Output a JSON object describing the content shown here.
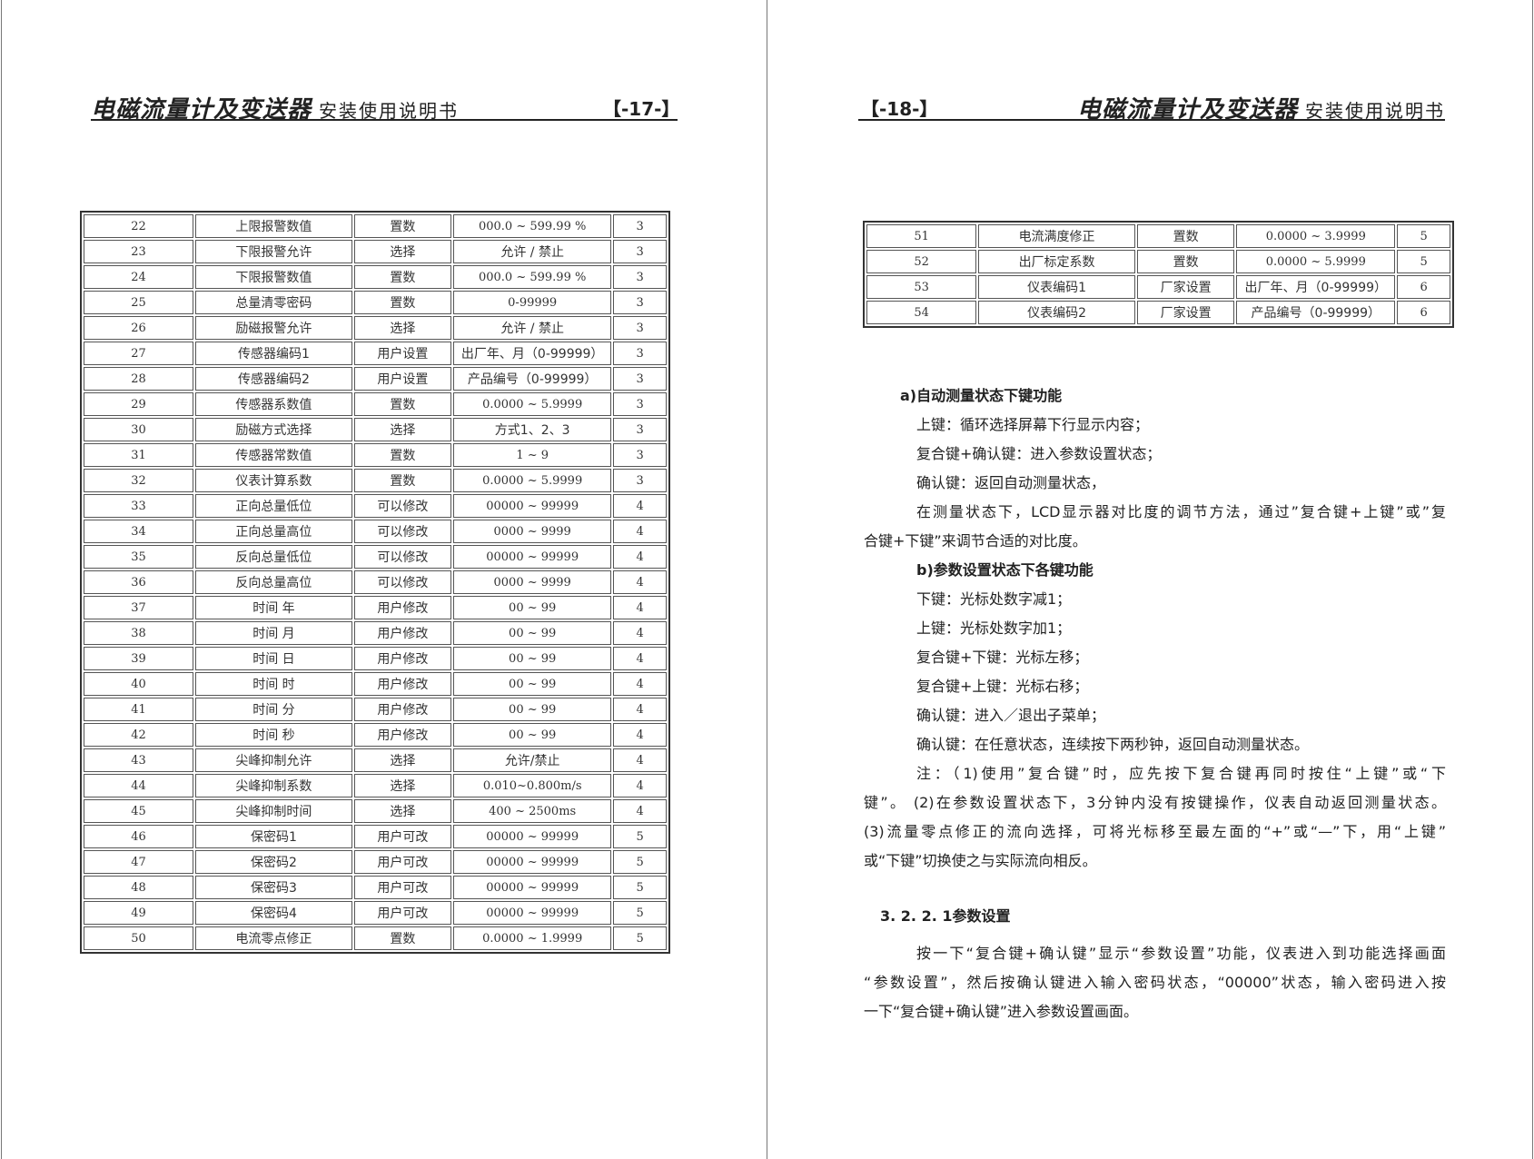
{
  "left_page": {
    "header_title": "电磁流量计及变送器",
    "header_subtitle": "安装使用说明书",
    "page_number": "【-17-】",
    "rows": [
      [
        "22",
        "上限报警数值",
        "置数",
        "000.0 ~ 599.99 %",
        "3"
      ],
      [
        "23",
        "下限报警允许",
        "选择",
        "允许 / 禁止",
        "3"
      ],
      [
        "24",
        "下限报警数值",
        "置数",
        "000.0 ~ 599.99 %",
        "3"
      ],
      [
        "25",
        "总量清零密码",
        "置数",
        "0-99999",
        "3"
      ],
      [
        "26",
        "励磁报警允许",
        "选择",
        "允许 / 禁止",
        "3"
      ],
      [
        "27",
        "传感器编码1",
        "用户设置",
        "出厂年、月（0-99999）",
        "3"
      ],
      [
        "28",
        "传感器编码2",
        "用户设置",
        "产品编号（0-99999）",
        "3"
      ],
      [
        "29",
        "传感器系数值",
        "置数",
        "0.0000 ~ 5.9999",
        "3"
      ],
      [
        "30",
        "励磁方式选择",
        "选择",
        "方式1、2、3",
        "3"
      ],
      [
        "31",
        "传感器常数值",
        "置数",
        "1 ~ 9",
        "3"
      ],
      [
        "32",
        "仪表计算系数",
        "置数",
        "0.0000 ~ 5.9999",
        "3"
      ],
      [
        "33",
        "正向总量低位",
        "可以修改",
        "00000 ~ 99999",
        "4"
      ],
      [
        "34",
        "正向总量高位",
        "可以修改",
        "0000 ~ 9999",
        "4"
      ],
      [
        "35",
        "反向总量低位",
        "可以修改",
        "00000 ~ 99999",
        "4"
      ],
      [
        "36",
        "反向总量高位",
        "可以修改",
        "0000 ~ 9999",
        "4"
      ],
      [
        "37",
        "时间 年",
        "用户修改",
        "00 ~ 99",
        "4"
      ],
      [
        "38",
        "时间 月",
        "用户修改",
        "00 ~ 99",
        "4"
      ],
      [
        "39",
        "时间 日",
        "用户修改",
        "00 ~ 99",
        "4"
      ],
      [
        "40",
        "时间 时",
        "用户修改",
        "00 ~ 99",
        "4"
      ],
      [
        "41",
        "时间 分",
        "用户修改",
        "00 ~ 99",
        "4"
      ],
      [
        "42",
        "时间 秒",
        "用户修改",
        "00 ~ 99",
        "4"
      ],
      [
        "43",
        "尖峰抑制允许",
        "选择",
        "允许/禁止",
        "4"
      ],
      [
        "44",
        "尖峰抑制系数",
        "选择",
        "0.010~0.800m/s",
        "4"
      ],
      [
        "45",
        "尖峰抑制时间",
        "选择",
        "400 ~ 2500ms",
        "4"
      ],
      [
        "46",
        "保密码1",
        "用户可改",
        "00000 ~ 99999",
        "5"
      ],
      [
        "47",
        "保密码2",
        "用户可改",
        "00000 ~ 99999",
        "5"
      ],
      [
        "48",
        "保密码3",
        "用户可改",
        "00000 ~ 99999",
        "5"
      ],
      [
        "49",
        "保密码4",
        "用户可改",
        "00000 ~ 99999",
        "5"
      ],
      [
        "50",
        "电流零点修正",
        "置数",
        "0.0000 ~ 1.9999",
        "5"
      ]
    ]
  },
  "right_page": {
    "header_title": "电磁流量计及变送器",
    "header_subtitle": "安装使用说明书",
    "page_number": "【-18-】",
    "rows": [
      [
        "51",
        "电流满度修正",
        "置数",
        "0.0000 ~ 3.9999",
        "5"
      ],
      [
        "52",
        "出厂标定系数",
        "置数",
        "0.0000 ~ 5.9999",
        "5"
      ],
      [
        "53",
        "仪表编码1",
        "厂家设置",
        "出厂年、月（0-99999）",
        "6"
      ],
      [
        "54",
        "仪表编码2",
        "厂家设置",
        "产品编号（0-99999）",
        "6"
      ]
    ],
    "lines": [
      {
        "text": "a)自动测量状态下键功能",
        "style": "heading-a"
      },
      {
        "text": "上键：循环选择屏幕下行显示内容；",
        "style": "indent"
      },
      {
        "text": "复合键+确认键：进入参数设置状态；",
        "style": "indent"
      },
      {
        "text": "确认键：返回自动测量状态，",
        "style": "indent"
      },
      {
        "text": "在测量状态下，LCD显示器对比度的调节方法，通过”复合键+上键”或”复",
        "style": "indent-full"
      },
      {
        "text": "合键+下键”来调节合适的对比度。",
        "style": "flush"
      },
      {
        "text": "b)参数设置状态下各键功能",
        "style": "heading-b"
      },
      {
        "text": "下键：光标处数字减1；",
        "style": "indent"
      },
      {
        "text": "上键：光标处数字加1；",
        "style": "indent"
      },
      {
        "text": "复合键+下键：光标左移；",
        "style": "indent"
      },
      {
        "text": "复合键+上键：光标右移；",
        "style": "indent"
      },
      {
        "text": "确认键：进入／退出子菜单；",
        "style": "indent"
      },
      {
        "text": "确认键：在任意状态，连续按下两秒钟，返回自动测量状态。",
        "style": "indent"
      },
      {
        "text": "注：（1)使用”复合键”时，应先按下复合键再同时按住“上键”或“下",
        "style": "indent-full"
      },
      {
        "text": "键”。  (2)在参数设置状态下，3分钟内没有按键操作，仪表自动返回测量状态。",
        "style": "flush-full"
      },
      {
        "text": "(3)流量零点修正的流向选择，可将光标移至最左面的“+”或“—”下，用“上键”",
        "style": "flush-full"
      },
      {
        "text": "或“下键”切换使之与实际流向相反。",
        "style": "flush"
      },
      {
        "text": "3. 2. 2. 1参数设置",
        "style": "section"
      },
      {
        "text": "按一下“复合键+确认键”显示“参数设置”功能，仪表进入到功能选择画面",
        "style": "indent2-full"
      },
      {
        "text": "“参数设置”，然后按确认键进入输入密码状态，“00000”状态，输入密码进入按",
        "style": "flush-full"
      },
      {
        "text": "一下“复合键+确认键”进入参数设置画面。",
        "style": "flush"
      }
    ]
  }
}
